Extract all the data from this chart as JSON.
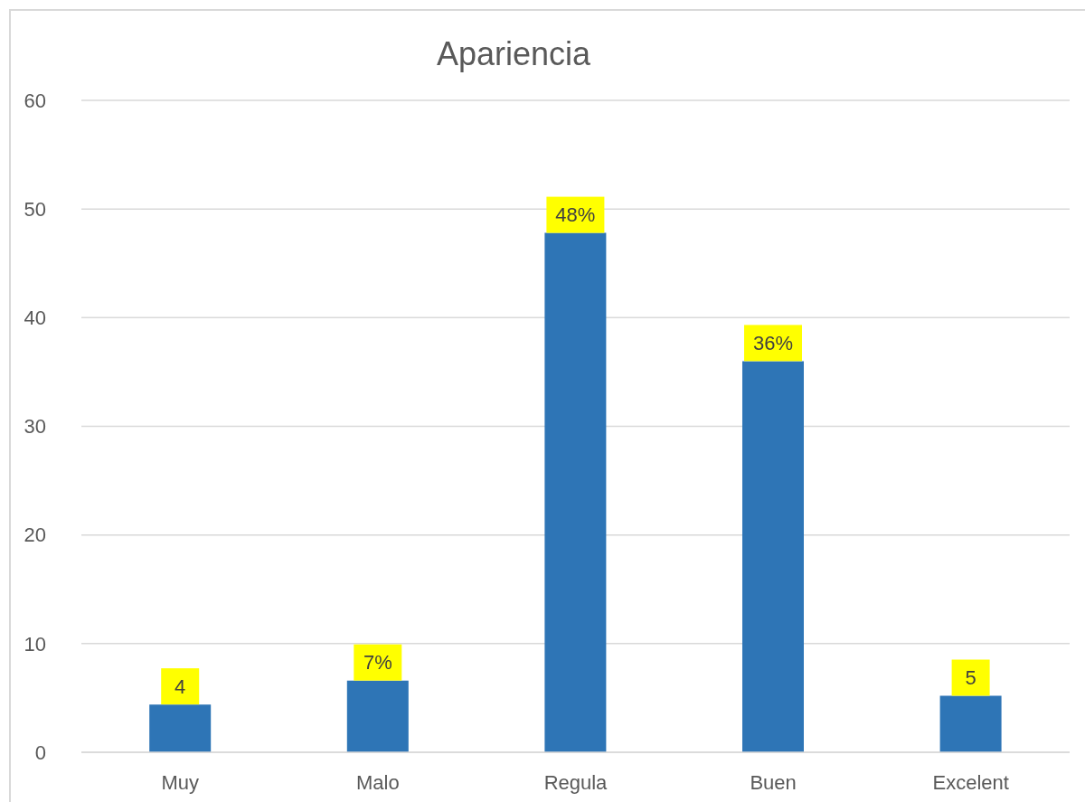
{
  "chart_data": {
    "type": "bar",
    "title": "Apariencia",
    "categories": [
      "Muy",
      "Malo",
      "Regula",
      "Buen",
      "Excelent"
    ],
    "values": [
      4.4,
      6.6,
      47.8,
      36,
      5.2
    ],
    "color": "#2e75b6",
    "value_labels": [
      "4",
      "7%",
      "48%",
      "36%",
      "5"
    ],
    "ylim": [
      0,
      60
    ],
    "yticks": [
      0,
      10,
      20,
      30,
      40,
      50,
      60
    ],
    "grid": "y"
  }
}
